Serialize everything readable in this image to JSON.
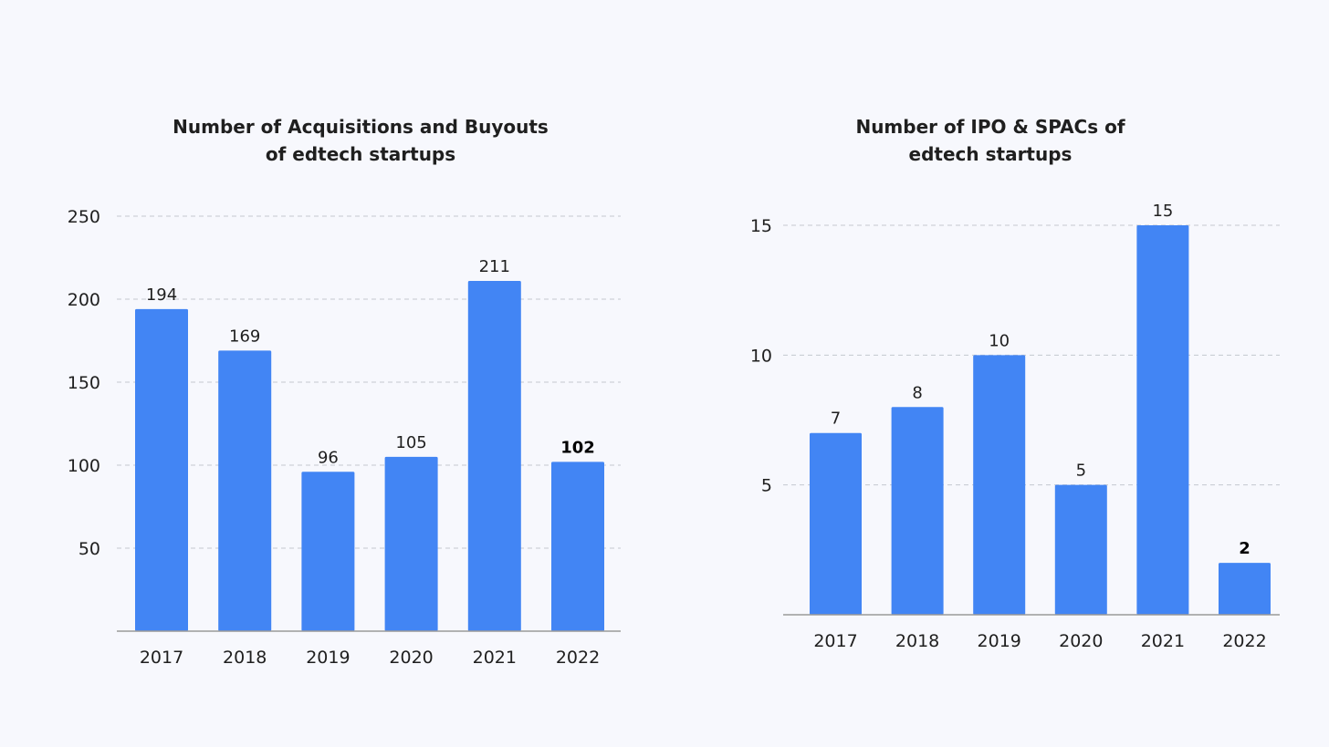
{
  "chart_data": [
    {
      "type": "bar",
      "title_lines": [
        "Number of Acquisitions and Buyouts",
        "of edtech startups"
      ],
      "categories": [
        "2017",
        "2018",
        "2019",
        "2020",
        "2021",
        "2022"
      ],
      "values": [
        194,
        169,
        96,
        105,
        211,
        102
      ],
      "data_labels": [
        "194",
        "169",
        "96",
        "105",
        "211",
        "102"
      ],
      "highlight_label_index": 5,
      "y_ticks": [
        50,
        100,
        150,
        200,
        250
      ],
      "y_tick_labels": [
        "50",
        "100",
        "150",
        "200",
        "250"
      ],
      "ylim": [
        0,
        250
      ],
      "grid": "dashed horizontal",
      "xlabel": "",
      "ylabel": ""
    },
    {
      "type": "bar",
      "title_lines": [
        "Number of IPO & SPACs of",
        "edtech startups"
      ],
      "categories": [
        "2017",
        "2018",
        "2019",
        "2020",
        "2021",
        "2022"
      ],
      "values": [
        7,
        8,
        10,
        5,
        15,
        2
      ],
      "data_labels": [
        "7",
        "8",
        "10",
        "5",
        "15",
        "2"
      ],
      "highlight_label_index": 5,
      "y_ticks": [
        5,
        10,
        15
      ],
      "y_tick_labels": [
        "5",
        "10",
        "15"
      ],
      "ylim": [
        0,
        15
      ],
      "grid": "dashed horizontal",
      "xlabel": "",
      "ylabel": ""
    }
  ],
  "colors": {
    "bar": "#4285f4",
    "grid": "#c4c7cf",
    "axis": "#9a9a9a",
    "text": "#1f1f1f",
    "background": "#f7f8fd"
  }
}
